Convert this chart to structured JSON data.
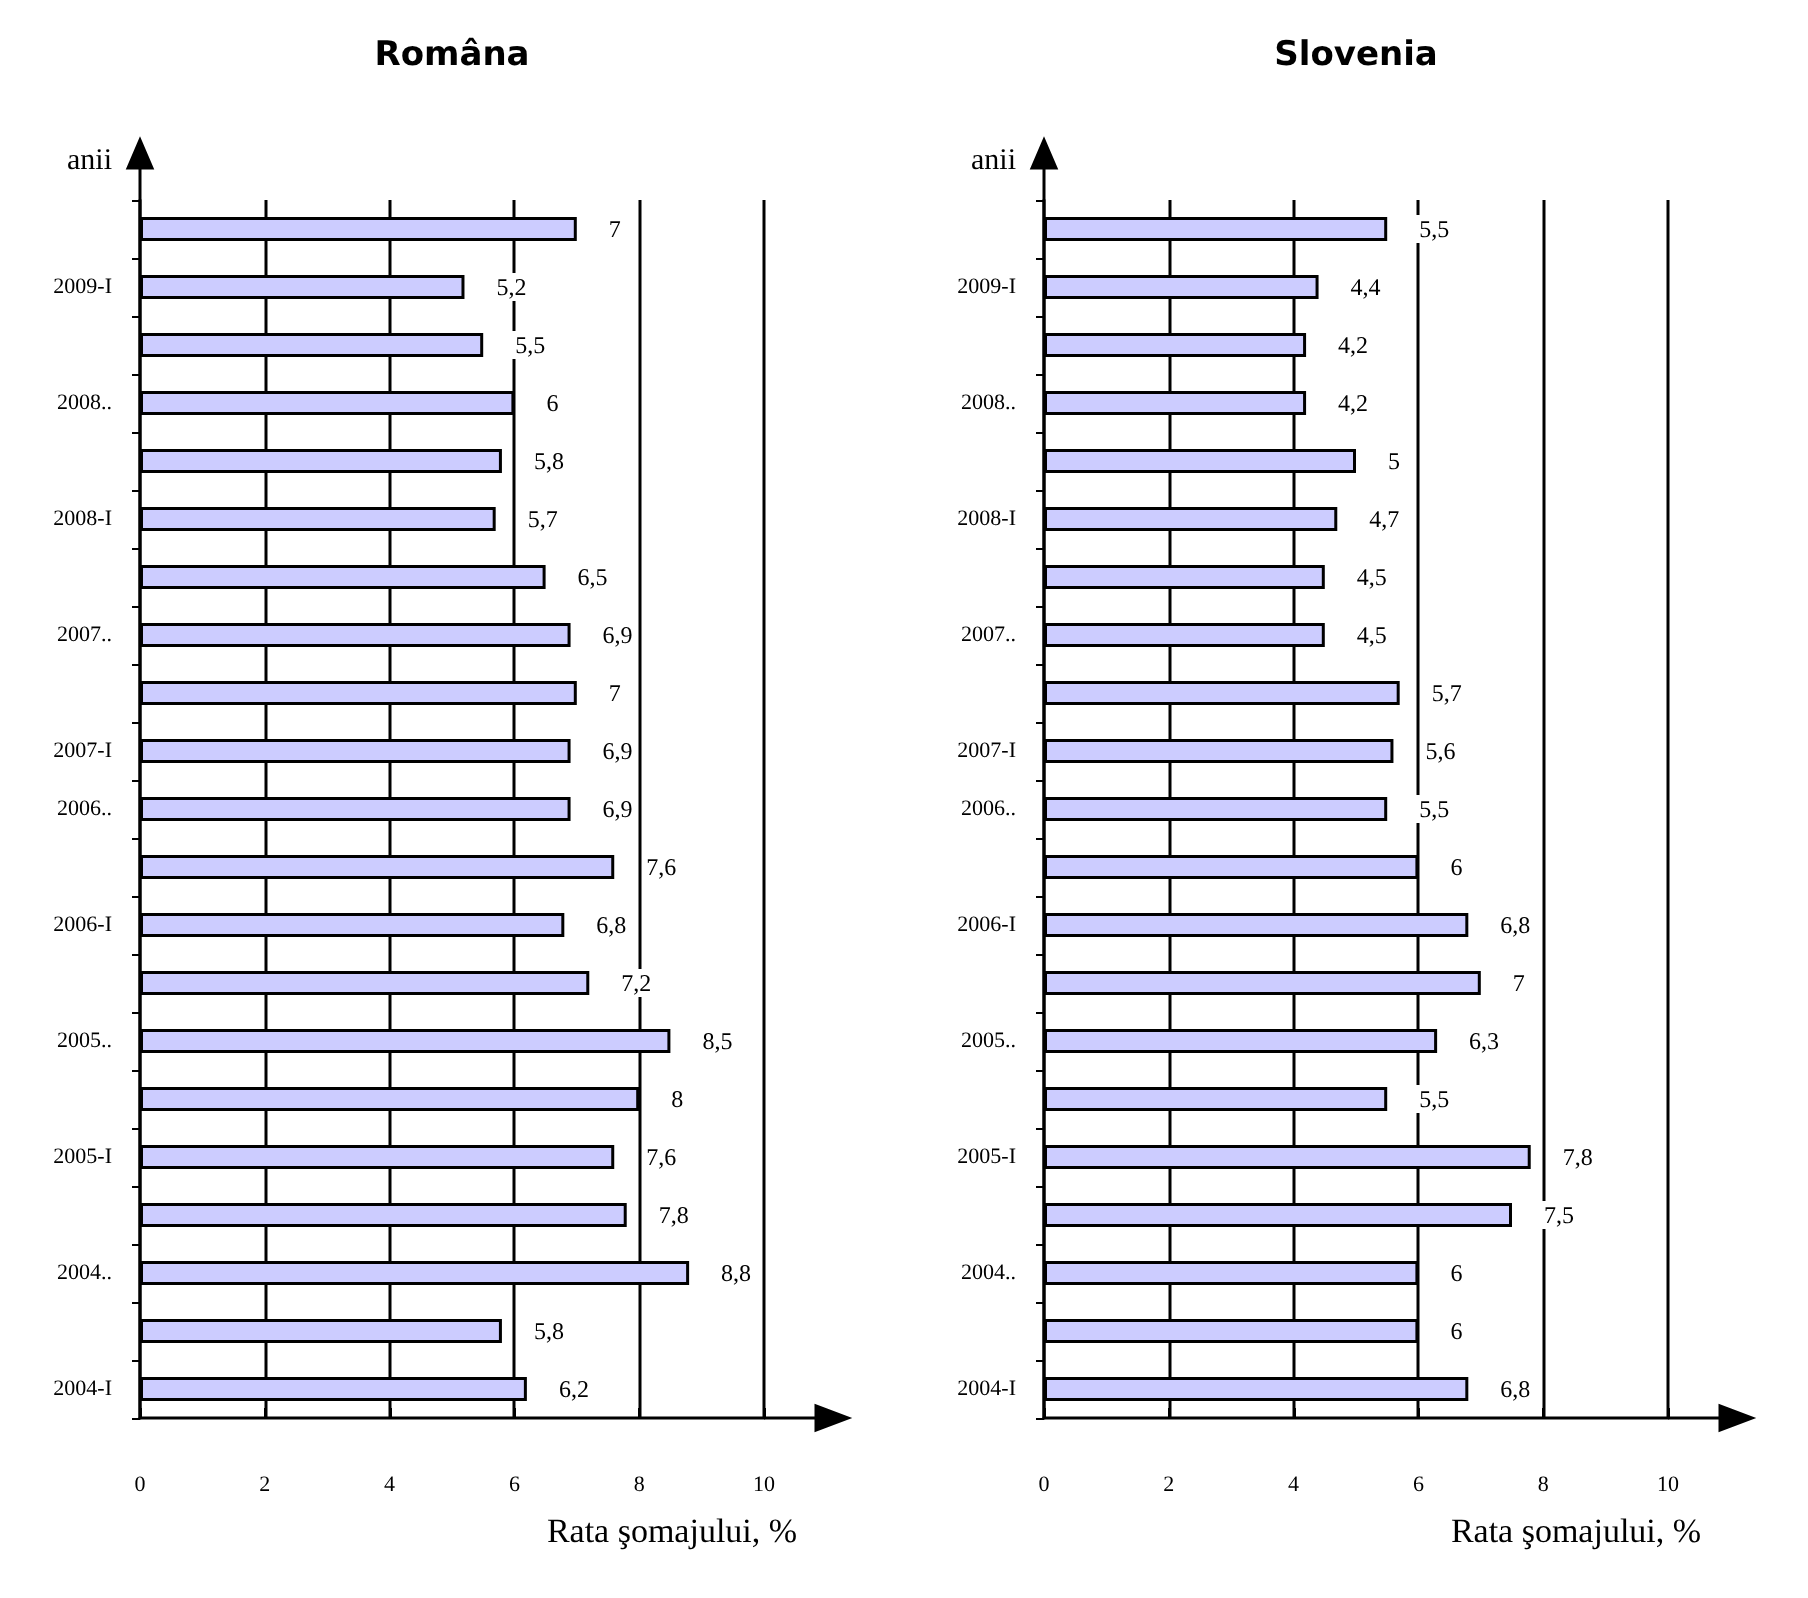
{
  "chart_data": [
    {
      "type": "bar",
      "orientation": "horizontal",
      "title": "Româna",
      "xlabel": "Rata şomajului, %",
      "ylabel": "anii",
      "categories": [
        null,
        "2009-I",
        null,
        "2008..",
        null,
        "2008-I",
        null,
        "2007..",
        null,
        "2007-I",
        "2006..",
        null,
        "2006-I",
        null,
        "2005..",
        null,
        "2005-I",
        null,
        "2004..",
        null,
        "2004-I"
      ],
      "values": [
        7,
        5.2,
        5.5,
        6,
        5.8,
        5.7,
        6.5,
        6.9,
        7,
        6.9,
        6.9,
        7.6,
        6.8,
        7.2,
        8.5,
        8,
        7.6,
        7.8,
        8.8,
        5.8,
        6.2
      ],
      "value_labels": [
        "7",
        "5,2",
        "5,5",
        "6",
        "5,8",
        "5,7",
        "6,5",
        "6,9",
        "7",
        "6,9",
        "6,9",
        "7,6",
        "6,8",
        "7,2",
        "8,5",
        "8",
        "7,6",
        "7,8",
        "8,8",
        "5,8",
        "6,2"
      ],
      "color": "#ccccff",
      "xlim": [
        0,
        10
      ],
      "xticks": [
        0,
        2,
        4,
        6,
        8,
        10
      ],
      "grid": "x"
    },
    {
      "type": "bar",
      "orientation": "horizontal",
      "title": "Slovenia",
      "xlabel": "Rata şomajului, %",
      "ylabel": "anii",
      "categories": [
        null,
        "2009-I",
        null,
        "2008..",
        null,
        "2008-I",
        null,
        "2007..",
        null,
        "2007-I",
        "2006..",
        null,
        "2006-I",
        null,
        "2005..",
        null,
        "2005-I",
        null,
        "2004..",
        null,
        "2004-I"
      ],
      "values": [
        5.5,
        4.4,
        4.2,
        4.2,
        5,
        4.7,
        4.5,
        4.5,
        5.7,
        5.6,
        5.5,
        6,
        6.8,
        7,
        6.3,
        5.5,
        7.8,
        7.5,
        6,
        6,
        6.8
      ],
      "value_labels": [
        "5,5",
        "4,4",
        "4,2",
        "4,2",
        "5",
        "4,7",
        "4,5",
        "4,5",
        "5,7",
        "5,6",
        "5,5",
        "6",
        "6,8",
        "7",
        "6,3",
        "5,5",
        "7,8",
        "7,5",
        "6",
        "6",
        "6,8"
      ],
      "color": "#ccccff",
      "xlim": [
        0,
        10
      ],
      "xticks": [
        0,
        2,
        4,
        6,
        8,
        10
      ],
      "grid": "x"
    }
  ]
}
